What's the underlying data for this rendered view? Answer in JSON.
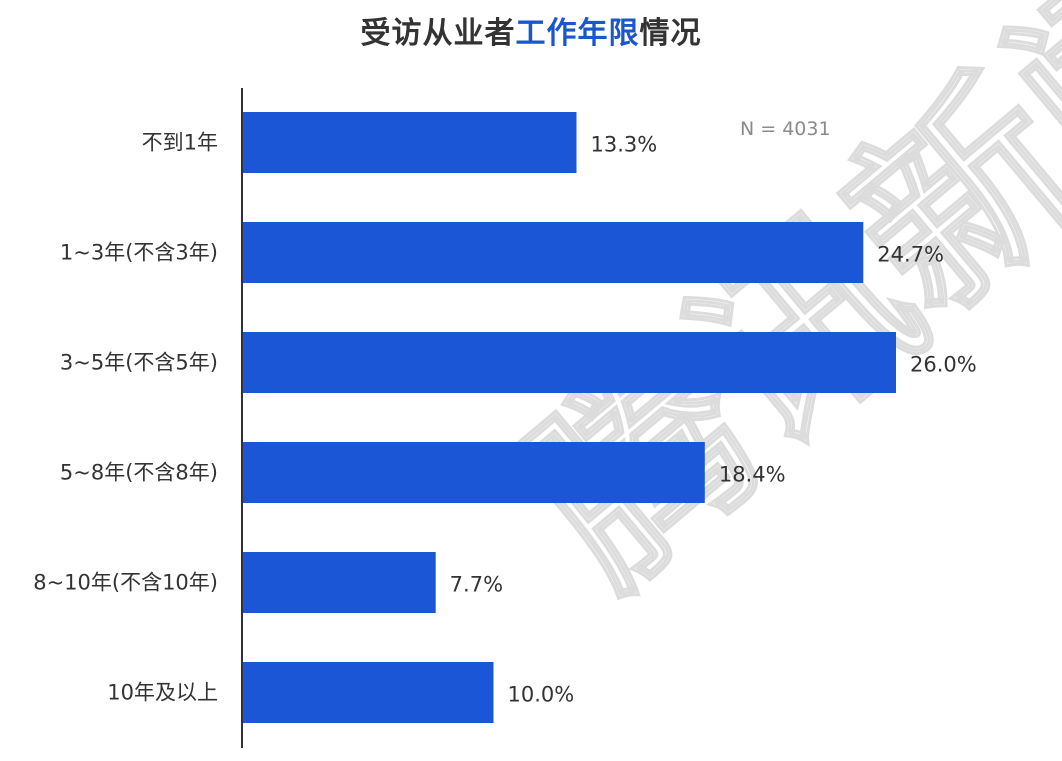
{
  "watermark": "腾讯新闻",
  "chart_data": {
    "type": "bar",
    "orientation": "horizontal",
    "title": "受访从业者工作年限情况",
    "title_parts": {
      "before": "受访从业者",
      "highlight": "工作年限",
      "after": "情况"
    },
    "note": "N = 4031",
    "categories": [
      "不到1年",
      "1~3年(不含3年)",
      "3~5年(不含5年)",
      "5~8年(不含8年)",
      "8~10年(不含10年)",
      "10年及以上"
    ],
    "values": [
      13.3,
      24.7,
      26.0,
      18.4,
      7.7,
      10.0
    ],
    "value_labels": [
      "13.3%",
      "24.7%",
      "26.0%",
      "18.4%",
      "7.7%",
      "10.0%"
    ],
    "unit": "%",
    "xlim": [
      0,
      28
    ],
    "grid": false,
    "legend": "none",
    "colors": {
      "bar": "#1a56d6",
      "title_highlight": "#1a56cc",
      "text": "#333333",
      "axis": "#333333",
      "note": "#8a8a8a",
      "watermark": "#dcdcdc"
    }
  }
}
